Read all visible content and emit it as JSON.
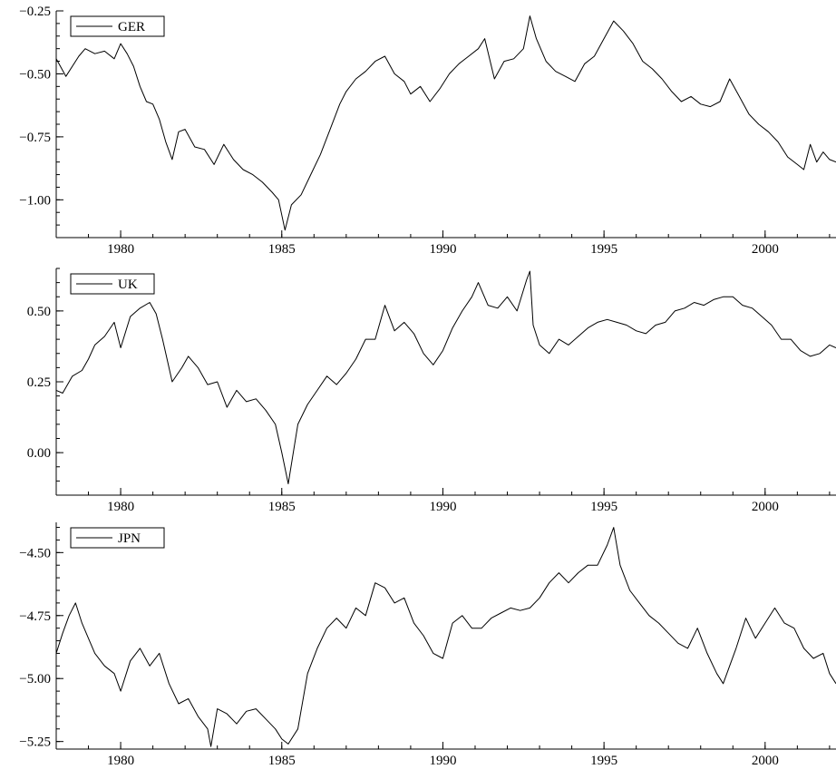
{
  "chart_data": [
    {
      "type": "line",
      "title": "",
      "xlabel": "",
      "ylabel": "",
      "xlim": [
        1978.0,
        2002.2
      ],
      "ylim": [
        -1.15,
        -0.25
      ],
      "x_ticks": [
        1980,
        1985,
        1990,
        1995,
        2000
      ],
      "x_tick_labels": [
        "1980",
        "1985",
        "1990",
        "1995",
        "2000"
      ],
      "y_ticks": [
        -0.25,
        -0.5,
        -0.75,
        -1.0
      ],
      "y_tick_labels": [
        "−0.25",
        "−0.50",
        "−0.75",
        "−1.00"
      ],
      "legend": "top-left",
      "grid": false,
      "series": [
        {
          "name": "GER",
          "color": "#000000",
          "x": [
            1978.0,
            1978.3,
            1978.7,
            1978.9,
            1979.2,
            1979.5,
            1979.8,
            1980.0,
            1980.2,
            1980.4,
            1980.6,
            1980.8,
            1981.0,
            1981.2,
            1981.4,
            1981.6,
            1981.8,
            1982.0,
            1982.3,
            1982.6,
            1982.9,
            1983.2,
            1983.5,
            1983.8,
            1984.1,
            1984.4,
            1984.7,
            1984.9,
            1985.1,
            1985.3,
            1985.6,
            1985.9,
            1986.2,
            1986.5,
            1986.8,
            1987.0,
            1987.3,
            1987.6,
            1987.9,
            1988.2,
            1988.5,
            1988.8,
            1989.0,
            1989.3,
            1989.6,
            1989.9,
            1990.2,
            1990.5,
            1990.8,
            1991.1,
            1991.3,
            1991.6,
            1991.9,
            1992.2,
            1992.5,
            1992.7,
            1992.9,
            1993.2,
            1993.5,
            1993.8,
            1994.1,
            1994.4,
            1994.7,
            1995.0,
            1995.3,
            1995.6,
            1995.9,
            1996.2,
            1996.5,
            1996.8,
            1997.1,
            1997.4,
            1997.7,
            1998.0,
            1998.3,
            1998.6,
            1998.9,
            1999.2,
            1999.5,
            1999.8,
            2000.1,
            2000.4,
            2000.7,
            2001.0,
            2001.2,
            2001.4,
            2001.6,
            2001.8,
            2002.0,
            2002.2
          ],
          "y": [
            -0.44,
            -0.51,
            -0.43,
            -0.4,
            -0.42,
            -0.41,
            -0.44,
            -0.38,
            -0.42,
            -0.47,
            -0.55,
            -0.61,
            -0.62,
            -0.68,
            -0.77,
            -0.84,
            -0.73,
            -0.72,
            -0.79,
            -0.8,
            -0.86,
            -0.78,
            -0.84,
            -0.88,
            -0.9,
            -0.93,
            -0.97,
            -1.0,
            -1.12,
            -1.02,
            -0.98,
            -0.9,
            -0.82,
            -0.72,
            -0.62,
            -0.57,
            -0.52,
            -0.49,
            -0.45,
            -0.43,
            -0.5,
            -0.53,
            -0.58,
            -0.55,
            -0.61,
            -0.56,
            -0.5,
            -0.46,
            -0.43,
            -0.4,
            -0.36,
            -0.52,
            -0.45,
            -0.44,
            -0.4,
            -0.27,
            -0.36,
            -0.45,
            -0.49,
            -0.51,
            -0.53,
            -0.46,
            -0.43,
            -0.36,
            -0.29,
            -0.33,
            -0.38,
            -0.45,
            -0.48,
            -0.52,
            -0.57,
            -0.61,
            -0.59,
            -0.62,
            -0.63,
            -0.61,
            -0.52,
            -0.59,
            -0.66,
            -0.7,
            -0.73,
            -0.77,
            -0.83,
            -0.86,
            -0.88,
            -0.78,
            -0.85,
            -0.81,
            -0.84,
            -0.85
          ]
        }
      ]
    },
    {
      "type": "line",
      "title": "",
      "xlabel": "",
      "ylabel": "",
      "xlim": [
        1978.0,
        2002.2
      ],
      "ylim": [
        -0.15,
        0.65
      ],
      "x_ticks": [
        1980,
        1985,
        1990,
        1995,
        2000
      ],
      "x_tick_labels": [
        "1980",
        "1985",
        "1990",
        "1995",
        "2000"
      ],
      "y_ticks": [
        0.5,
        0.25,
        0.0
      ],
      "y_tick_labels": [
        "0.50",
        "0.25",
        "0.00"
      ],
      "legend": "top-left",
      "grid": false,
      "series": [
        {
          "name": "UK",
          "color": "#000000",
          "x": [
            1978.0,
            1978.2,
            1978.5,
            1978.8,
            1979.0,
            1979.2,
            1979.5,
            1979.8,
            1980.0,
            1980.3,
            1980.6,
            1980.9,
            1981.1,
            1981.3,
            1981.6,
            1981.9,
            1982.1,
            1982.4,
            1982.7,
            1983.0,
            1983.3,
            1983.6,
            1983.9,
            1984.2,
            1984.5,
            1984.8,
            1985.0,
            1985.2,
            1985.5,
            1985.8,
            1986.1,
            1986.4,
            1986.7,
            1987.0,
            1987.3,
            1987.6,
            1987.9,
            1988.2,
            1988.5,
            1988.8,
            1989.1,
            1989.4,
            1989.7,
            1990.0,
            1990.3,
            1990.6,
            1990.9,
            1991.1,
            1991.4,
            1991.7,
            1992.0,
            1992.3,
            1992.6,
            1992.7,
            1992.8,
            1993.0,
            1993.3,
            1993.6,
            1993.9,
            1994.2,
            1994.5,
            1994.8,
            1995.1,
            1995.4,
            1995.7,
            1996.0,
            1996.3,
            1996.6,
            1996.9,
            1997.2,
            1997.5,
            1997.8,
            1998.1,
            1998.4,
            1998.7,
            1999.0,
            1999.3,
            1999.6,
            1999.9,
            2000.2,
            2000.5,
            2000.8,
            2001.1,
            2001.4,
            2001.7,
            2002.0,
            2002.2
          ],
          "y": [
            0.22,
            0.21,
            0.27,
            0.29,
            0.33,
            0.38,
            0.41,
            0.46,
            0.37,
            0.48,
            0.51,
            0.53,
            0.49,
            0.4,
            0.25,
            0.3,
            0.34,
            0.3,
            0.24,
            0.25,
            0.16,
            0.22,
            0.18,
            0.19,
            0.15,
            0.1,
            0.0,
            -0.11,
            0.1,
            0.17,
            0.22,
            0.27,
            0.24,
            0.28,
            0.33,
            0.4,
            0.4,
            0.52,
            0.43,
            0.46,
            0.42,
            0.35,
            0.31,
            0.36,
            0.44,
            0.5,
            0.55,
            0.6,
            0.52,
            0.51,
            0.55,
            0.5,
            0.61,
            0.64,
            0.45,
            0.38,
            0.35,
            0.4,
            0.38,
            0.41,
            0.44,
            0.46,
            0.47,
            0.46,
            0.45,
            0.43,
            0.42,
            0.45,
            0.46,
            0.5,
            0.51,
            0.53,
            0.52,
            0.54,
            0.55,
            0.55,
            0.52,
            0.51,
            0.48,
            0.45,
            0.4,
            0.4,
            0.36,
            0.34,
            0.35,
            0.38,
            0.37
          ]
        }
      ]
    },
    {
      "type": "line",
      "title": "",
      "xlabel": "",
      "ylabel": "",
      "xlim": [
        1978.0,
        2002.2
      ],
      "ylim": [
        -5.28,
        -4.38
      ],
      "x_ticks": [
        1980,
        1985,
        1990,
        1995,
        2000
      ],
      "x_tick_labels": [
        "1980",
        "1985",
        "1990",
        "1995",
        "2000"
      ],
      "y_ticks": [
        -4.5,
        -4.75,
        -5.0,
        -5.25
      ],
      "y_tick_labels": [
        "−4.50",
        "−4.75",
        "−5.00",
        "−5.25"
      ],
      "legend": "top-left",
      "grid": false,
      "series": [
        {
          "name": "JPN",
          "color": "#000000",
          "x": [
            1978.0,
            1978.2,
            1978.4,
            1978.6,
            1978.8,
            1979.0,
            1979.2,
            1979.5,
            1979.8,
            1980.0,
            1980.3,
            1980.6,
            1980.9,
            1981.2,
            1981.5,
            1981.8,
            1982.1,
            1982.4,
            1982.7,
            1982.8,
            1983.0,
            1983.3,
            1983.6,
            1983.9,
            1984.2,
            1984.5,
            1984.8,
            1985.0,
            1985.2,
            1985.5,
            1985.8,
            1986.1,
            1986.4,
            1986.7,
            1987.0,
            1987.3,
            1987.6,
            1987.9,
            1988.2,
            1988.5,
            1988.8,
            1989.1,
            1989.4,
            1989.7,
            1990.0,
            1990.3,
            1990.6,
            1990.9,
            1991.2,
            1991.5,
            1991.8,
            1992.1,
            1992.4,
            1992.7,
            1993.0,
            1993.3,
            1993.6,
            1993.9,
            1994.2,
            1994.5,
            1994.8,
            1995.1,
            1995.3,
            1995.5,
            1995.8,
            1996.1,
            1996.4,
            1996.7,
            1997.0,
            1997.3,
            1997.6,
            1997.9,
            1998.2,
            1998.5,
            1998.7,
            1998.9,
            1999.1,
            1999.4,
            1999.7,
            2000.0,
            2000.3,
            2000.6,
            2000.9,
            2001.2,
            2001.5,
            2001.8,
            2002.0,
            2002.2
          ],
          "y": [
            -4.9,
            -4.82,
            -4.75,
            -4.7,
            -4.78,
            -4.84,
            -4.9,
            -4.95,
            -4.98,
            -5.05,
            -4.93,
            -4.88,
            -4.95,
            -4.9,
            -5.02,
            -5.1,
            -5.08,
            -5.15,
            -5.2,
            -5.27,
            -5.12,
            -5.14,
            -5.18,
            -5.13,
            -5.12,
            -5.16,
            -5.2,
            -5.24,
            -5.26,
            -5.2,
            -4.98,
            -4.88,
            -4.8,
            -4.76,
            -4.8,
            -4.72,
            -4.75,
            -4.62,
            -4.64,
            -4.7,
            -4.68,
            -4.78,
            -4.83,
            -4.9,
            -4.92,
            -4.78,
            -4.75,
            -4.8,
            -4.8,
            -4.76,
            -4.74,
            -4.72,
            -4.73,
            -4.72,
            -4.68,
            -4.62,
            -4.58,
            -4.62,
            -4.58,
            -4.55,
            -4.55,
            -4.47,
            -4.4,
            -4.55,
            -4.65,
            -4.7,
            -4.75,
            -4.78,
            -4.82,
            -4.86,
            -4.88,
            -4.8,
            -4.9,
            -4.98,
            -5.02,
            -4.95,
            -4.88,
            -4.76,
            -4.84,
            -4.78,
            -4.72,
            -4.78,
            -4.8,
            -4.88,
            -4.92,
            -4.9,
            -4.98,
            -5.02
          ]
        }
      ]
    }
  ]
}
